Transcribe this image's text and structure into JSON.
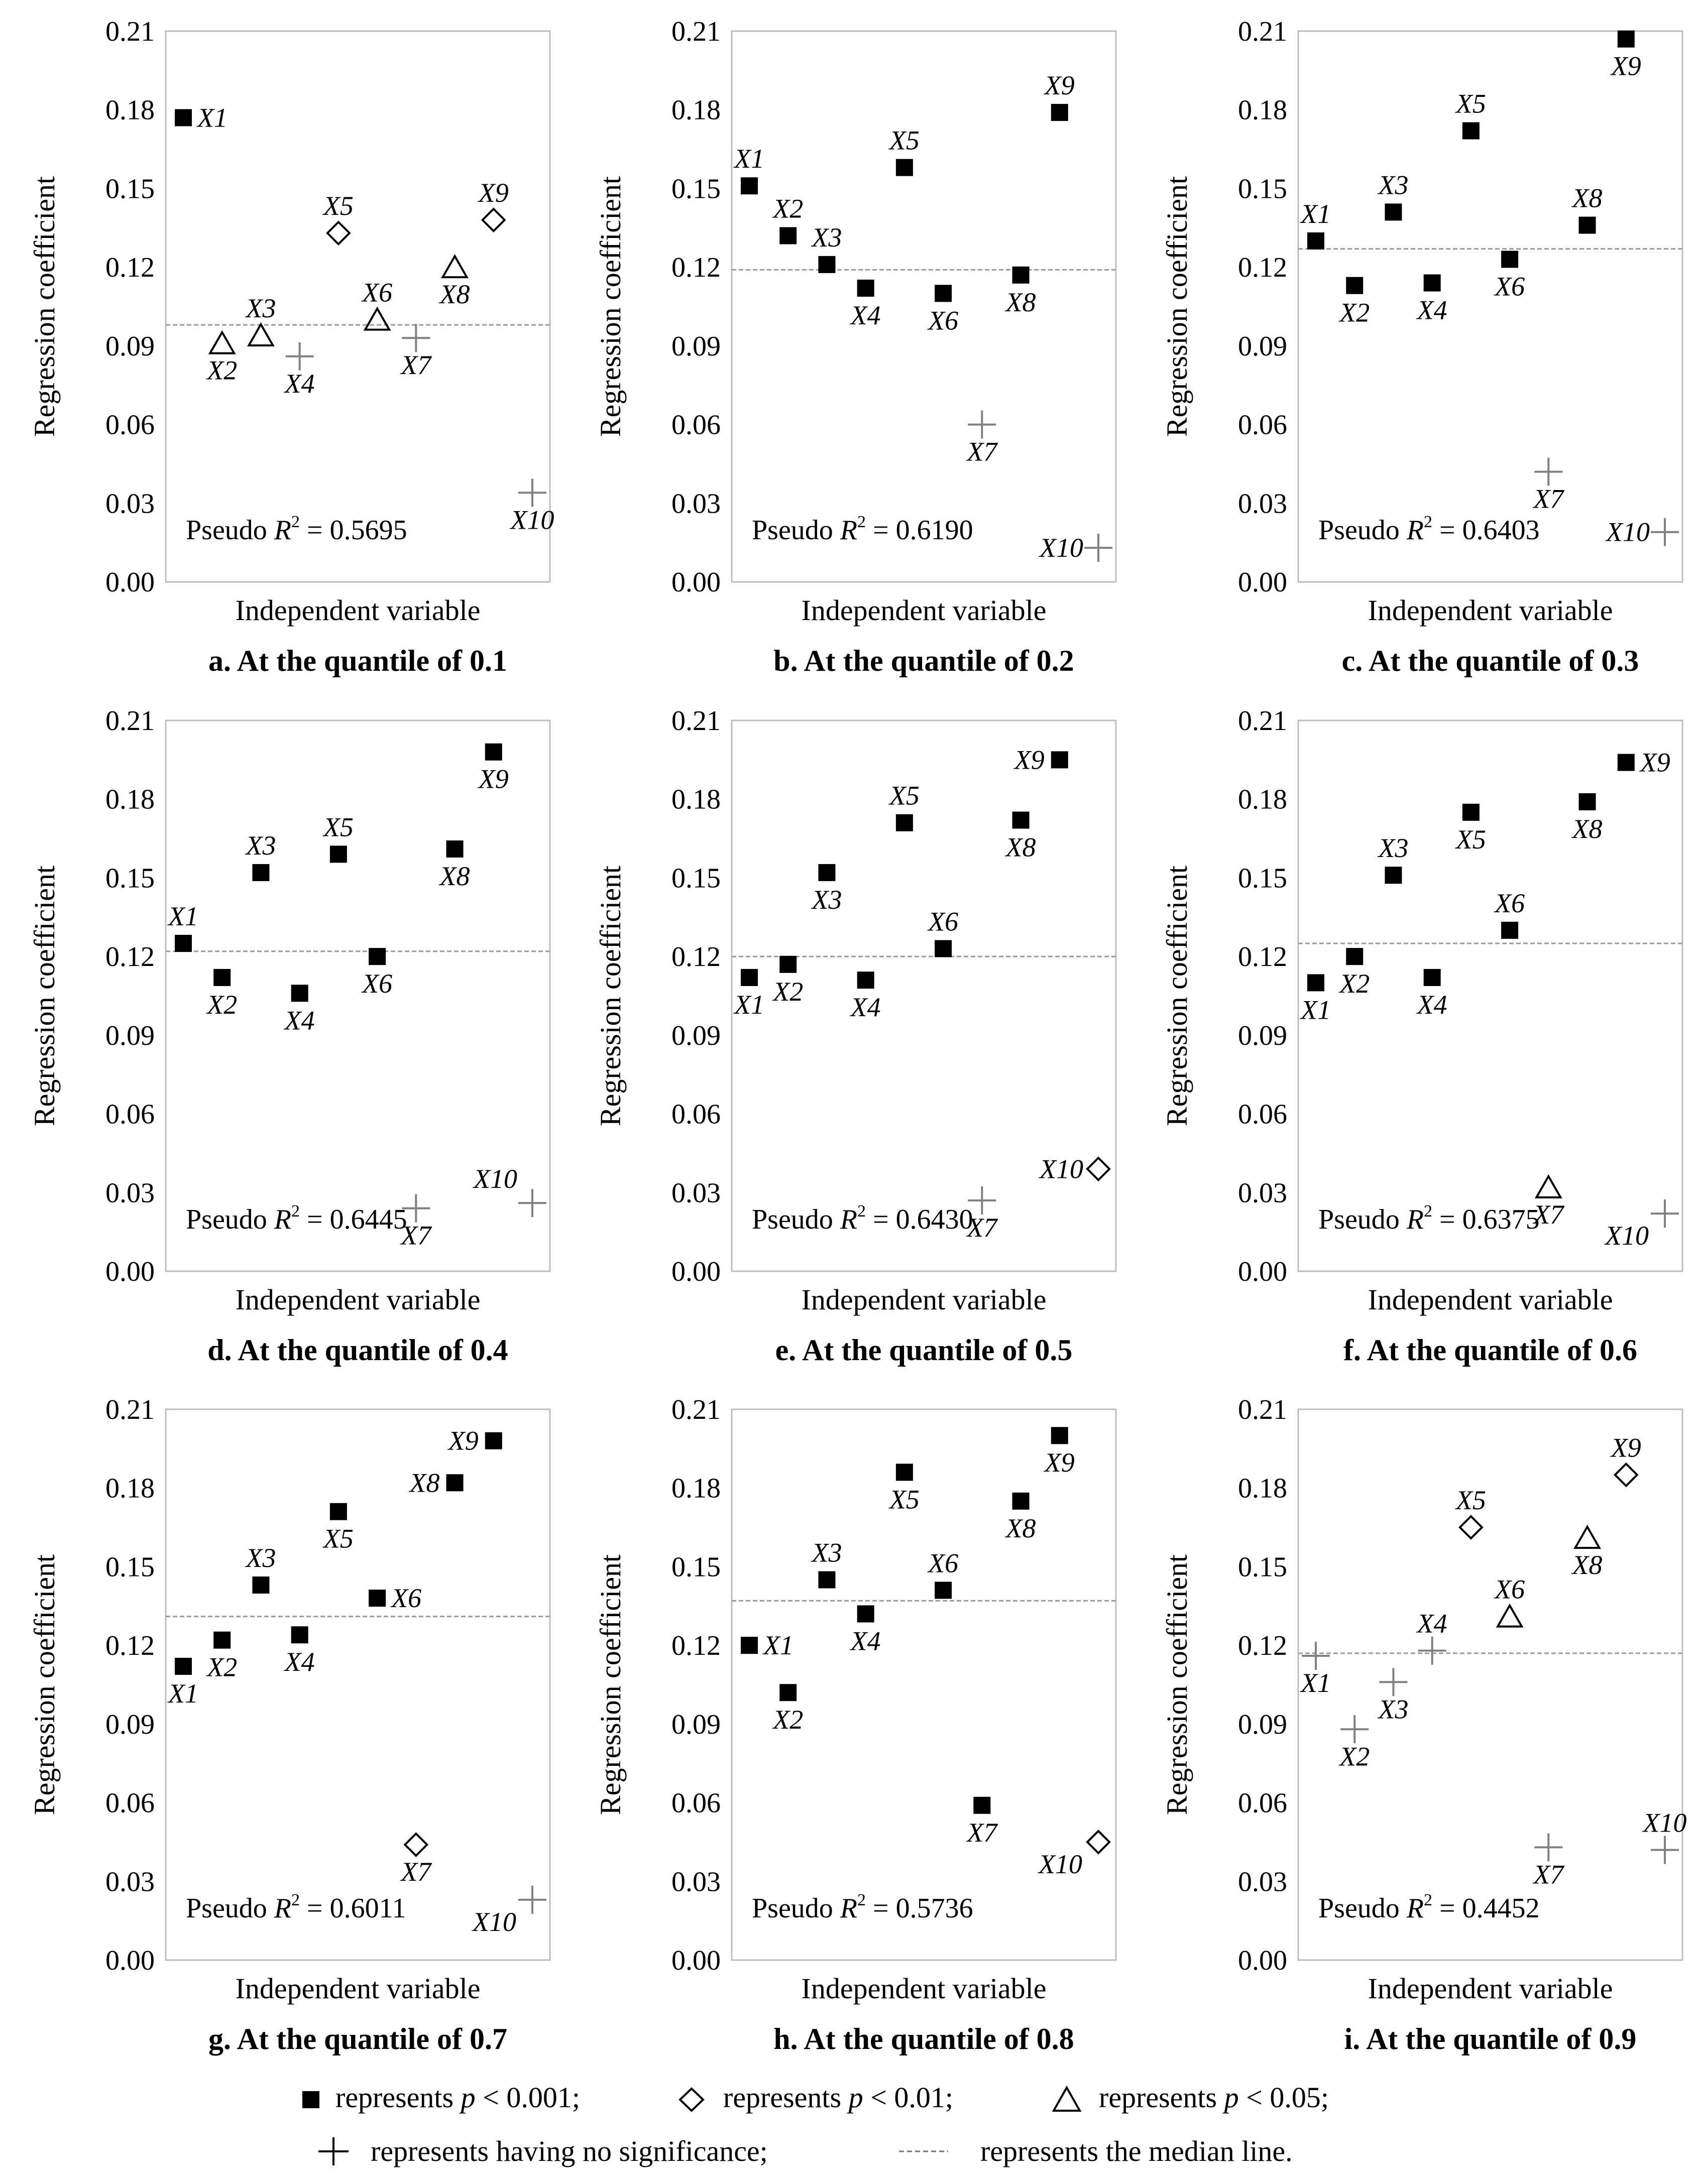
{
  "figure": {
    "ylabel": "Regression coefficient",
    "xlabel": "Independent variable",
    "yticks": [
      "0.21",
      "0.18",
      "0.15",
      "0.12",
      "0.09",
      "0.06",
      "0.03",
      "0.00"
    ],
    "r2_prefix": "Pseudo ",
    "r2_symbol": "R",
    "r2_sup": "2",
    "r2_eq": " = ",
    "var_prefix": "X"
  },
  "legend": {
    "items": [
      {
        "marker": "square",
        "pre": "represents ",
        "p": "p",
        "post": " < 0.001;"
      },
      {
        "marker": "diamond",
        "pre": "represents ",
        "p": "p",
        "post": " < 0.01;"
      },
      {
        "marker": "triangle",
        "pre": "represents ",
        "p": "p",
        "post": " < 0.05;"
      },
      {
        "marker": "plus",
        "text": "represents having no significance;"
      },
      {
        "marker": "dash",
        "text": "represents the median line."
      }
    ]
  },
  "colors": {
    "sig": "#000000",
    "nonsig": "#808080",
    "median": "#9a9a9a",
    "frame": "#bdbdbd"
  },
  "chart_data": [
    {
      "type": "scatter",
      "title": "a. At the quantile of 0.1",
      "pseudo_r2": "0.5695",
      "median": 0.098,
      "ylim": [
        0,
        0.21
      ],
      "points": [
        {
          "x": 1,
          "label": "1",
          "y": 0.177,
          "sig": "square",
          "lp": "r"
        },
        {
          "x": 2,
          "label": "2",
          "y": 0.091,
          "sig": "triangle",
          "lp": "b"
        },
        {
          "x": 3,
          "label": "3",
          "y": 0.094,
          "sig": "triangle",
          "lp": "t"
        },
        {
          "x": 4,
          "label": "4",
          "y": 0.086,
          "sig": "plus",
          "lp": "b"
        },
        {
          "x": 5,
          "label": "5",
          "y": 0.133,
          "sig": "diamond",
          "lp": "t"
        },
        {
          "x": 6,
          "label": "6",
          "y": 0.1,
          "sig": "triangle",
          "lp": "t"
        },
        {
          "x": 7,
          "label": "7",
          "y": 0.093,
          "sig": "plus",
          "lp": "b"
        },
        {
          "x": 8,
          "label": "8",
          "y": 0.12,
          "sig": "triangle",
          "lp": "b"
        },
        {
          "x": 9,
          "label": "9",
          "y": 0.138,
          "sig": "diamond",
          "lp": "t"
        },
        {
          "x": 10,
          "label": "10",
          "y": 0.034,
          "sig": "plus",
          "lp": "b"
        }
      ]
    },
    {
      "type": "scatter",
      "title": "b. At the quantile of 0.2",
      "pseudo_r2": "0.6190",
      "median": 0.119,
      "ylim": [
        0,
        0.21
      ],
      "points": [
        {
          "x": 1,
          "label": "1",
          "y": 0.151,
          "sig": "square",
          "lp": "t"
        },
        {
          "x": 2,
          "label": "2",
          "y": 0.132,
          "sig": "square",
          "lp": "t"
        },
        {
          "x": 3,
          "label": "3",
          "y": 0.121,
          "sig": "square",
          "lp": "t"
        },
        {
          "x": 4,
          "label": "4",
          "y": 0.112,
          "sig": "square",
          "lp": "b"
        },
        {
          "x": 5,
          "label": "5",
          "y": 0.158,
          "sig": "square",
          "lp": "t"
        },
        {
          "x": 6,
          "label": "6",
          "y": 0.11,
          "sig": "square",
          "lp": "b"
        },
        {
          "x": 7,
          "label": "7",
          "y": 0.06,
          "sig": "plus",
          "lp": "b"
        },
        {
          "x": 8,
          "label": "8",
          "y": 0.117,
          "sig": "square",
          "lp": "b"
        },
        {
          "x": 9,
          "label": "9",
          "y": 0.179,
          "sig": "square",
          "lp": "t"
        },
        {
          "x": 10,
          "label": "10",
          "y": 0.013,
          "sig": "plus",
          "lp": "l"
        }
      ]
    },
    {
      "type": "scatter",
      "title": "c. At the quantile of 0.3",
      "pseudo_r2": "0.6403",
      "median": 0.127,
      "ylim": [
        0,
        0.21
      ],
      "points": [
        {
          "x": 1,
          "label": "1",
          "y": 0.13,
          "sig": "square",
          "lp": "t"
        },
        {
          "x": 2,
          "label": "2",
          "y": 0.113,
          "sig": "square",
          "lp": "b"
        },
        {
          "x": 3,
          "label": "3",
          "y": 0.141,
          "sig": "square",
          "lp": "t"
        },
        {
          "x": 4,
          "label": "4",
          "y": 0.114,
          "sig": "square",
          "lp": "b"
        },
        {
          "x": 5,
          "label": "5",
          "y": 0.172,
          "sig": "square",
          "lp": "t"
        },
        {
          "x": 6,
          "label": "6",
          "y": 0.123,
          "sig": "square",
          "lp": "b"
        },
        {
          "x": 7,
          "label": "7",
          "y": 0.042,
          "sig": "plus",
          "lp": "b"
        },
        {
          "x": 8,
          "label": "8",
          "y": 0.136,
          "sig": "square",
          "lp": "t"
        },
        {
          "x": 9,
          "label": "9",
          "y": 0.207,
          "sig": "square",
          "lp": "b"
        },
        {
          "x": 10,
          "label": "10",
          "y": 0.019,
          "sig": "plus",
          "lp": "l"
        }
      ]
    },
    {
      "type": "scatter",
      "title": "d. At the quantile of 0.4",
      "pseudo_r2": "0.6445",
      "median": 0.122,
      "ylim": [
        0,
        0.21
      ],
      "points": [
        {
          "x": 1,
          "label": "1",
          "y": 0.125,
          "sig": "square",
          "lp": "t"
        },
        {
          "x": 2,
          "label": "2",
          "y": 0.112,
          "sig": "square",
          "lp": "b"
        },
        {
          "x": 3,
          "label": "3",
          "y": 0.152,
          "sig": "square",
          "lp": "t"
        },
        {
          "x": 4,
          "label": "4",
          "y": 0.106,
          "sig": "square",
          "lp": "b"
        },
        {
          "x": 5,
          "label": "5",
          "y": 0.159,
          "sig": "square",
          "lp": "t"
        },
        {
          "x": 6,
          "label": "6",
          "y": 0.12,
          "sig": "square",
          "lp": "b"
        },
        {
          "x": 7,
          "label": "7",
          "y": 0.024,
          "sig": "plus",
          "lp": "b"
        },
        {
          "x": 8,
          "label": "8",
          "y": 0.161,
          "sig": "square",
          "lp": "b"
        },
        {
          "x": 9,
          "label": "9",
          "y": 0.198,
          "sig": "square",
          "lp": "b"
        },
        {
          "x": 10,
          "label": "10",
          "y": 0.026,
          "sig": "plus",
          "lp": "tl"
        }
      ]
    },
    {
      "type": "scatter",
      "title": "e. At the quantile of 0.5",
      "pseudo_r2": "0.6430",
      "median": 0.12,
      "ylim": [
        0,
        0.21
      ],
      "points": [
        {
          "x": 1,
          "label": "1",
          "y": 0.112,
          "sig": "square",
          "lp": "b"
        },
        {
          "x": 2,
          "label": "2",
          "y": 0.117,
          "sig": "square",
          "lp": "b"
        },
        {
          "x": 3,
          "label": "3",
          "y": 0.152,
          "sig": "square",
          "lp": "b"
        },
        {
          "x": 4,
          "label": "4",
          "y": 0.111,
          "sig": "square",
          "lp": "b"
        },
        {
          "x": 5,
          "label": "5",
          "y": 0.171,
          "sig": "square",
          "lp": "t"
        },
        {
          "x": 6,
          "label": "6",
          "y": 0.123,
          "sig": "square",
          "lp": "t"
        },
        {
          "x": 7,
          "label": "7",
          "y": 0.027,
          "sig": "plus",
          "lp": "b"
        },
        {
          "x": 8,
          "label": "8",
          "y": 0.172,
          "sig": "square",
          "lp": "b"
        },
        {
          "x": 9,
          "label": "9",
          "y": 0.195,
          "sig": "square",
          "lp": "l"
        },
        {
          "x": 10,
          "label": "10",
          "y": 0.039,
          "sig": "diamond",
          "lp": "l"
        }
      ]
    },
    {
      "type": "scatter",
      "title": "f. At the quantile of 0.6",
      "pseudo_r2": "0.6375",
      "median": 0.125,
      "ylim": [
        0,
        0.21
      ],
      "points": [
        {
          "x": 1,
          "label": "1",
          "y": 0.11,
          "sig": "square",
          "lp": "b"
        },
        {
          "x": 2,
          "label": "2",
          "y": 0.12,
          "sig": "square",
          "lp": "b"
        },
        {
          "x": 3,
          "label": "3",
          "y": 0.151,
          "sig": "square",
          "lp": "t"
        },
        {
          "x": 4,
          "label": "4",
          "y": 0.112,
          "sig": "square",
          "lp": "b"
        },
        {
          "x": 5,
          "label": "5",
          "y": 0.175,
          "sig": "square",
          "lp": "b"
        },
        {
          "x": 6,
          "label": "6",
          "y": 0.13,
          "sig": "square",
          "lp": "t"
        },
        {
          "x": 7,
          "label": "7",
          "y": 0.032,
          "sig": "triangle",
          "lp": "b"
        },
        {
          "x": 8,
          "label": "8",
          "y": 0.179,
          "sig": "square",
          "lp": "b"
        },
        {
          "x": 9,
          "label": "9",
          "y": 0.194,
          "sig": "square",
          "lp": "r"
        },
        {
          "x": 10,
          "label": "10",
          "y": 0.022,
          "sig": "plus",
          "lp": "bl"
        }
      ]
    },
    {
      "type": "scatter",
      "title": "g. At the quantile of 0.7",
      "pseudo_r2": "0.6011",
      "median": 0.131,
      "ylim": [
        0,
        0.21
      ],
      "points": [
        {
          "x": 1,
          "label": "1",
          "y": 0.112,
          "sig": "square",
          "lp": "b"
        },
        {
          "x": 2,
          "label": "2",
          "y": 0.122,
          "sig": "square",
          "lp": "b"
        },
        {
          "x": 3,
          "label": "3",
          "y": 0.143,
          "sig": "square",
          "lp": "t"
        },
        {
          "x": 4,
          "label": "4",
          "y": 0.124,
          "sig": "square",
          "lp": "b"
        },
        {
          "x": 5,
          "label": "5",
          "y": 0.171,
          "sig": "square",
          "lp": "b"
        },
        {
          "x": 6,
          "label": "6",
          "y": 0.138,
          "sig": "square",
          "lp": "r"
        },
        {
          "x": 7,
          "label": "7",
          "y": 0.044,
          "sig": "diamond",
          "lp": "b"
        },
        {
          "x": 8,
          "label": "8",
          "y": 0.182,
          "sig": "square",
          "lp": "l"
        },
        {
          "x": 9,
          "label": "9",
          "y": 0.198,
          "sig": "square",
          "lp": "l"
        },
        {
          "x": 10,
          "label": "10",
          "y": 0.023,
          "sig": "plus",
          "lp": "bl"
        }
      ]
    },
    {
      "type": "scatter",
      "title": "h. At the quantile of 0.8",
      "pseudo_r2": "0.5736",
      "median": 0.137,
      "ylim": [
        0,
        0.21
      ],
      "points": [
        {
          "x": 1,
          "label": "1",
          "y": 0.12,
          "sig": "square",
          "lp": "r"
        },
        {
          "x": 2,
          "label": "2",
          "y": 0.102,
          "sig": "square",
          "lp": "b"
        },
        {
          "x": 3,
          "label": "3",
          "y": 0.145,
          "sig": "square",
          "lp": "t"
        },
        {
          "x": 4,
          "label": "4",
          "y": 0.132,
          "sig": "square",
          "lp": "b"
        },
        {
          "x": 5,
          "label": "5",
          "y": 0.186,
          "sig": "square",
          "lp": "b"
        },
        {
          "x": 6,
          "label": "6",
          "y": 0.141,
          "sig": "square",
          "lp": "t"
        },
        {
          "x": 7,
          "label": "7",
          "y": 0.059,
          "sig": "square",
          "lp": "b"
        },
        {
          "x": 8,
          "label": "8",
          "y": 0.175,
          "sig": "square",
          "lp": "b"
        },
        {
          "x": 9,
          "label": "9",
          "y": 0.2,
          "sig": "square",
          "lp": "b"
        },
        {
          "x": 10,
          "label": "10",
          "y": 0.045,
          "sig": "diamond",
          "lp": "bl"
        }
      ]
    },
    {
      "type": "scatter",
      "title": "i. At the quantile of 0.9",
      "pseudo_r2": "0.4452",
      "median": 0.117,
      "ylim": [
        0,
        0.21
      ],
      "points": [
        {
          "x": 1,
          "label": "1",
          "y": 0.116,
          "sig": "plus",
          "lp": "b"
        },
        {
          "x": 2,
          "label": "2",
          "y": 0.088,
          "sig": "plus",
          "lp": "b"
        },
        {
          "x": 3,
          "label": "3",
          "y": 0.106,
          "sig": "plus",
          "lp": "b"
        },
        {
          "x": 4,
          "label": "4",
          "y": 0.118,
          "sig": "plus",
          "lp": "t"
        },
        {
          "x": 5,
          "label": "5",
          "y": 0.165,
          "sig": "diamond",
          "lp": "t"
        },
        {
          "x": 6,
          "label": "6",
          "y": 0.131,
          "sig": "triangle",
          "lp": "t"
        },
        {
          "x": 7,
          "label": "7",
          "y": 0.043,
          "sig": "plus",
          "lp": "b"
        },
        {
          "x": 8,
          "label": "8",
          "y": 0.161,
          "sig": "triangle",
          "lp": "b"
        },
        {
          "x": 9,
          "label": "9",
          "y": 0.185,
          "sig": "diamond",
          "lp": "t"
        },
        {
          "x": 10,
          "label": "10",
          "y": 0.042,
          "sig": "plus",
          "lp": "t"
        }
      ]
    }
  ]
}
